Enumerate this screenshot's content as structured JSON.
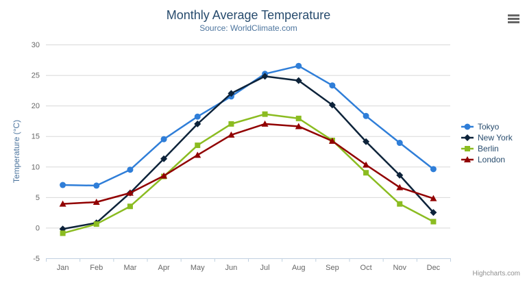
{
  "chart_data": {
    "type": "line",
    "title": "Monthly Average Temperature",
    "subtitle": "Source: WorldClimate.com",
    "categories": [
      "Jan",
      "Feb",
      "Mar",
      "Apr",
      "May",
      "Jun",
      "Jul",
      "Aug",
      "Sep",
      "Oct",
      "Nov",
      "Dec"
    ],
    "xlabel": "",
    "ylabel": "Temperature (°C)",
    "ylim": [
      -5,
      30
    ],
    "ytick_step": 5,
    "grid": true,
    "legend_position": "right",
    "series": [
      {
        "name": "Tokyo",
        "color": "#2f7ed8",
        "marker": "circle",
        "values": [
          7.0,
          6.9,
          9.5,
          14.5,
          18.2,
          21.5,
          25.2,
          26.5,
          23.3,
          18.3,
          13.9,
          9.6
        ]
      },
      {
        "name": "New York",
        "color": "#0d233a",
        "marker": "diamond",
        "values": [
          -0.2,
          0.8,
          5.7,
          11.3,
          17.0,
          22.0,
          24.8,
          24.1,
          20.1,
          14.1,
          8.6,
          2.5
        ]
      },
      {
        "name": "Berlin",
        "color": "#8bbc21",
        "marker": "square",
        "values": [
          -0.9,
          0.6,
          3.5,
          8.4,
          13.5,
          17.0,
          18.6,
          17.9,
          14.3,
          9.0,
          3.9,
          1.0
        ]
      },
      {
        "name": "London",
        "color": "#910000",
        "marker": "triangle",
        "values": [
          3.9,
          4.2,
          5.7,
          8.5,
          11.9,
          15.2,
          17.0,
          16.6,
          14.2,
          10.3,
          6.6,
          4.8
        ]
      }
    ],
    "credits": "Highcharts.com"
  },
  "icons": {
    "context_menu": "hamburger-menu-icon"
  },
  "theme": {
    "title_color": "#274b6d",
    "subtitle_color": "#4d759e",
    "axis_title_color": "#4d759e",
    "axis_label_color": "#666666",
    "legend_text_color": "#274b6d",
    "grid_color": "#d8d8d8",
    "axis_line_color": "#c0d0e0",
    "credits_color": "#909090"
  }
}
